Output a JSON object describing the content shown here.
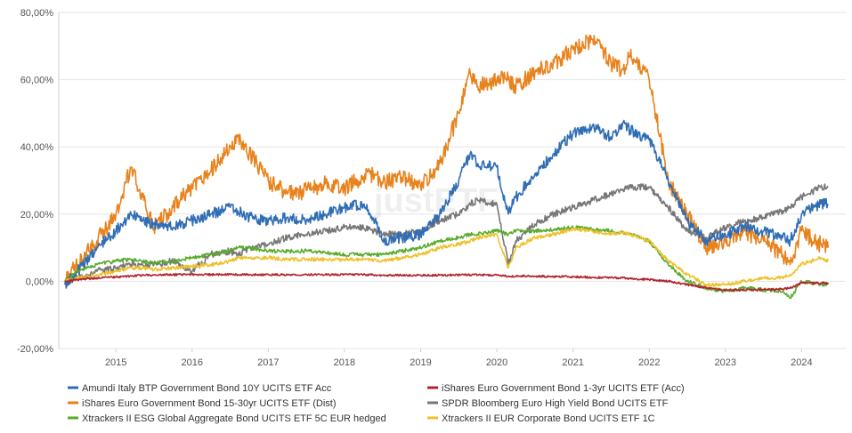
{
  "chart_data": {
    "type": "line",
    "title": "",
    "xlabel": "",
    "ylabel": "",
    "ylim": [
      -20,
      80
    ],
    "y_ticks": [
      -20,
      0,
      20,
      40,
      60,
      80
    ],
    "y_tick_labels": [
      "-20,00%",
      "0,00%",
      "20,00%",
      "40,00%",
      "60,00%",
      "80,00%"
    ],
    "x_tick_labels": [
      "2015",
      "2016",
      "2017",
      "2018",
      "2019",
      "2020",
      "2021",
      "2022",
      "2023",
      "2024"
    ],
    "x_tick_values": [
      2015,
      2016,
      2017,
      2018,
      2019,
      2020,
      2021,
      2022,
      2023,
      2024
    ],
    "xlim": [
      2014.25,
      2024.58
    ],
    "grid": "horizontal",
    "legend_position": "bottom",
    "watermark": "justETF",
    "x": [
      2014.33,
      2014.5,
      2014.75,
      2015.0,
      2015.2,
      2015.35,
      2015.5,
      2015.75,
      2016.0,
      2016.25,
      2016.5,
      2016.6,
      2016.75,
      2017.0,
      2017.25,
      2017.5,
      2017.75,
      2018.0,
      2018.25,
      2018.4,
      2018.5,
      2018.75,
      2019.0,
      2019.25,
      2019.5,
      2019.65,
      2019.75,
      2020.0,
      2020.15,
      2020.25,
      2020.5,
      2020.75,
      2021.0,
      2021.25,
      2021.5,
      2021.65,
      2021.75,
      2022.0,
      2022.25,
      2022.5,
      2022.75,
      2023.0,
      2023.25,
      2023.5,
      2023.75,
      2023.85,
      2024.0,
      2024.25,
      2024.35
    ],
    "series": [
      {
        "name": "Amundi Italy BTP Government Bond 10Y UCITS ETF Acc",
        "color": "#2f6db5",
        "values": [
          -1,
          3,
          10,
          15,
          20,
          18,
          17,
          16,
          18,
          20,
          22,
          21,
          19,
          18,
          19,
          18,
          20,
          22,
          23,
          18,
          12,
          13,
          14,
          20,
          30,
          38,
          35,
          34,
          20,
          25,
          32,
          38,
          44,
          46,
          43,
          47,
          45,
          42,
          30,
          18,
          12,
          14,
          16,
          15,
          13,
          12,
          20,
          23,
          23
        ]
      },
      {
        "name": "iShares Euro Government Bond 1-3yr UCITS ETF (Acc)",
        "color": "#b3232a",
        "values": [
          0,
          0.5,
          1,
          1.3,
          1.6,
          1.8,
          1.9,
          2.0,
          2.0,
          2.0,
          2.0,
          2.0,
          2.0,
          2.0,
          2.0,
          2.0,
          2.0,
          2.0,
          2.0,
          1.9,
          1.8,
          1.8,
          1.8,
          1.8,
          1.9,
          1.9,
          1.9,
          1.8,
          1.5,
          1.6,
          1.5,
          1.4,
          1.3,
          1.2,
          1.1,
          1.0,
          0.8,
          0.5,
          0,
          -1,
          -2,
          -2.5,
          -2.6,
          -2.5,
          -2.3,
          -2,
          -0.5,
          -0.5,
          -0.5
        ]
      },
      {
        "name": "iShares Euro Government Bond 15-30yr UCITS ETF (Dist)",
        "color": "#e8821c",
        "values": [
          0,
          5,
          12,
          20,
          34,
          25,
          16,
          22,
          28,
          33,
          40,
          43,
          38,
          30,
          26,
          27,
          29,
          28,
          31,
          32,
          29,
          31,
          28,
          35,
          50,
          62,
          58,
          60,
          60,
          58,
          62,
          65,
          69,
          72,
          65,
          63,
          67,
          60,
          30,
          20,
          10,
          12,
          15,
          12,
          8,
          5,
          15,
          11,
          10
        ]
      },
      {
        "name": "SPDR Bloomberg Euro High Yield Bond UCITS ETF",
        "color": "#777777",
        "values": [
          0,
          1,
          3,
          4,
          5,
          5,
          5,
          6,
          3,
          8,
          9,
          8,
          10,
          11,
          13,
          14,
          15,
          16,
          16,
          15,
          14,
          14,
          15,
          18,
          20,
          23,
          24,
          23,
          5,
          12,
          17,
          20,
          22,
          24,
          26,
          27,
          28,
          28,
          22,
          15,
          13,
          16,
          18,
          19,
          21,
          22,
          25,
          28,
          28
        ]
      },
      {
        "name": "Xtrackers II ESG Global Aggregate Bond UCITS ETF 5C EUR hedged",
        "color": "#5aab2d",
        "values": [
          0,
          3,
          5,
          6,
          6.5,
          6,
          5.5,
          6,
          7,
          8,
          9,
          10,
          10,
          9,
          9,
          9,
          8.5,
          8,
          8,
          8,
          8,
          9,
          10,
          12,
          13,
          14,
          14,
          15,
          14,
          15,
          15,
          15.5,
          16,
          15.5,
          15,
          14.5,
          14,
          12,
          5,
          0,
          -2,
          -3,
          -2,
          -2.5,
          -3,
          -5,
          0,
          -1,
          -1
        ]
      },
      {
        "name": "Xtrackers II EUR Corporate Bond UCITS ETF 1C",
        "color": "#eec12a",
        "values": [
          0,
          1,
          2,
          3,
          4,
          4,
          3.5,
          4,
          4.5,
          5,
          6,
          7,
          7,
          7,
          6.5,
          6.5,
          6.5,
          6.5,
          6.5,
          6.5,
          6,
          7,
          8,
          10,
          11,
          12,
          13,
          14,
          4,
          10,
          13,
          14,
          15.5,
          15,
          14,
          14.5,
          14,
          12,
          6,
          2,
          -1,
          -1,
          0,
          1,
          1,
          2,
          5,
          7,
          6
        ]
      }
    ]
  }
}
